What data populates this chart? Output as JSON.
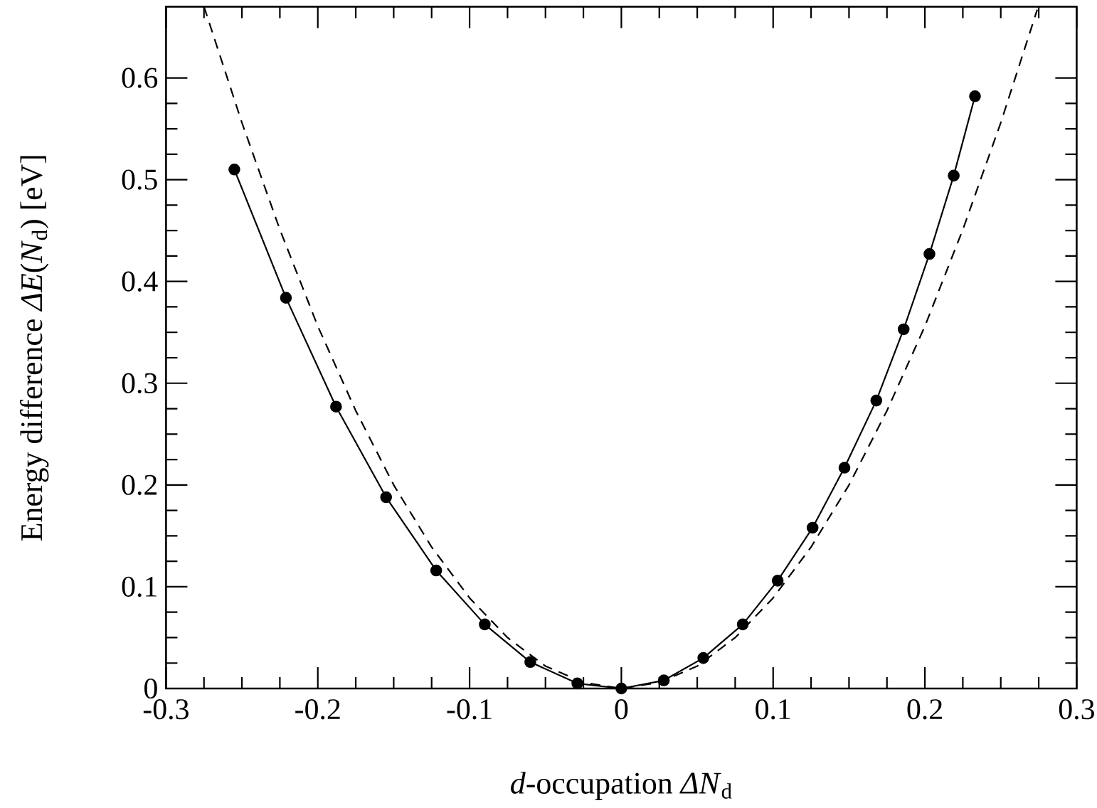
{
  "chart_data": {
    "type": "line",
    "xlabel": "*d*-occupation *ΔN*$_{d}$",
    "ylabel": "Energy difference *ΔE*(*N*$_{d}$) [eV]",
    "xlim": [
      -0.3,
      0.3
    ],
    "ylim": [
      0,
      0.67
    ],
    "xticks": [
      -0.3,
      -0.2,
      -0.1,
      0,
      0.1,
      0.2,
      0.3
    ],
    "yticks": [
      0,
      0.1,
      0.2,
      0.3,
      0.4,
      0.5,
      0.6
    ],
    "grid": false,
    "series": [
      {
        "color": "#000000",
        "marker": "circle",
        "line_style": "solid",
        "x": [
          -0.255,
          -0.221,
          -0.188,
          -0.155,
          -0.122,
          -0.09,
          -0.06,
          -0.029,
          0,
          0.028,
          0.054,
          0.08,
          0.103,
          0.126,
          0.147,
          0.168,
          0.186,
          0.203,
          0.219,
          0.233
        ],
        "values": [
          0.51,
          0.384,
          0.277,
          0.188,
          0.116,
          0.063,
          0.026,
          0.005,
          0,
          0.008,
          0.03,
          0.063,
          0.106,
          0.158,
          0.217,
          0.283,
          0.353,
          0.427,
          0.504,
          0.582
        ]
      },
      {
        "type": "line",
        "color": "#000000",
        "marker": "none",
        "line_style": "dashed",
        "x": [
          -0.275,
          -0.25,
          -0.225,
          -0.2,
          -0.175,
          -0.15,
          -0.125,
          -0.1,
          -0.075,
          -0.05,
          -0.025,
          0,
          0.025,
          0.05,
          0.075,
          0.1,
          0.125,
          0.15,
          0.175,
          0.2,
          0.225,
          0.25,
          0.274
        ],
        "values": [
          0.67,
          0.556,
          0.451,
          0.356,
          0.273,
          0.2,
          0.139,
          0.089,
          0.05,
          0.022,
          0.006,
          0,
          0.006,
          0.022,
          0.05,
          0.089,
          0.139,
          0.2,
          0.273,
          0.356,
          0.451,
          0.556,
          0.667
        ]
      }
    ]
  }
}
